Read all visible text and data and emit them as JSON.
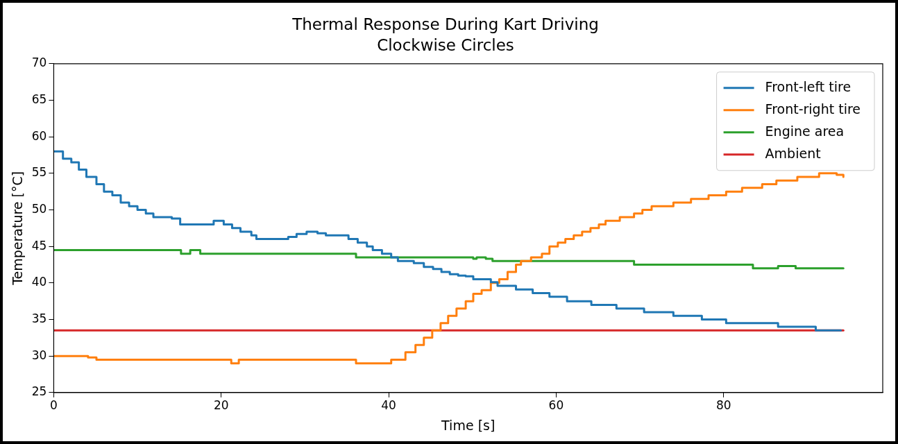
{
  "chart_data": {
    "type": "step",
    "title": "Thermal Response During Kart Driving",
    "subtitle": "Clockwise Circles",
    "xlabel": "Time [s]",
    "ylabel": "Temperature [°C]",
    "xlim": [
      0,
      99
    ],
    "xticks": [
      0,
      20,
      40,
      60,
      80
    ],
    "ylim": [
      25,
      70
    ],
    "yticks": [
      25,
      30,
      35,
      40,
      45,
      50,
      55,
      60,
      65,
      70
    ],
    "grid": false,
    "legend": "top right",
    "series": [
      {
        "name": "Front-left tire",
        "color": "#1f77b4",
        "x": [
          0,
          1.1,
          2.1,
          3.0,
          3.9,
          5.1,
          6.0,
          7.0,
          8.0,
          9.0,
          10.0,
          11.0,
          11.9,
          14.1,
          15.1,
          19.1,
          20.3,
          21.3,
          22.3,
          23.6,
          24.2,
          28.0,
          29.0,
          30.2,
          31.5,
          32.5,
          35.2,
          36.3,
          37.4,
          38.1,
          39.2,
          40.3,
          41.1,
          43.0,
          44.2,
          45.3,
          46.3,
          47.3,
          48.3,
          49.2,
          50.1,
          52.2,
          53.0,
          55.2,
          57.2,
          59.2,
          61.3,
          64.2,
          67.2,
          70.5,
          74.0,
          77.4,
          80.3,
          86.5,
          91.0,
          94.0
        ],
        "values": [
          58,
          57,
          56.5,
          55.5,
          54.5,
          53.5,
          52.5,
          52,
          51,
          50.5,
          50,
          49.5,
          49,
          48.8,
          48,
          48.5,
          48,
          47.5,
          47,
          46.5,
          46,
          46.3,
          46.7,
          47,
          46.8,
          46.5,
          46,
          45.5,
          45,
          44.5,
          44,
          43.5,
          43,
          42.7,
          42.2,
          41.9,
          41.5,
          41.2,
          41,
          40.9,
          40.5,
          40.1,
          39.6,
          39.1,
          38.6,
          38.1,
          37.5,
          37,
          36.5,
          36,
          35.5,
          35,
          34.5,
          34,
          33.5,
          33.5
        ]
      },
      {
        "name": "Front-right tire",
        "color": "#ff7f0e",
        "x": [
          0,
          4.1,
          5.1,
          21.2,
          22.1,
          36.1,
          40.3,
          42.0,
          43.2,
          44.2,
          45.2,
          46.2,
          47.1,
          48.1,
          49.2,
          50.1,
          51.1,
          52.2,
          53.2,
          54.2,
          55.2,
          55.8,
          57.0,
          58.3,
          59.2,
          60.2,
          61.1,
          62.1,
          63.1,
          64.1,
          65.1,
          65.9,
          67.6,
          69.3,
          70.3,
          71.4,
          74.0,
          76.1,
          78.2,
          80.3,
          82.2,
          84.6,
          86.3,
          88.8,
          91.4,
          93.5,
          94.3
        ],
        "values": [
          30,
          29.8,
          29.5,
          29,
          29.5,
          29,
          29.5,
          30.5,
          31.5,
          32.5,
          33.5,
          34.5,
          35.5,
          36.5,
          37.5,
          38.5,
          39,
          40,
          40.5,
          41.5,
          42.5,
          43,
          43.5,
          44,
          45,
          45.5,
          46,
          46.5,
          47,
          47.5,
          48,
          48.5,
          49,
          49.5,
          50,
          50.5,
          51,
          51.5,
          52,
          52.5,
          53,
          53.5,
          54,
          54.5,
          55,
          54.8,
          54.5
        ]
      },
      {
        "name": "Engine area",
        "color": "#2ca02c",
        "x": [
          0,
          15.2,
          16.3,
          17.5,
          36.1,
          50.1,
          50.5,
          51.6,
          52.4,
          69.3,
          83.5,
          86.5,
          88.6,
          94.3
        ],
        "values": [
          44.5,
          44,
          44.5,
          44,
          43.5,
          43.3,
          43.5,
          43.3,
          43,
          42.5,
          42,
          42.3,
          42,
          42
        ]
      },
      {
        "name": "Ambient",
        "color": "#d62728",
        "x": [
          0,
          94.3
        ],
        "values": [
          33.5,
          33.5
        ]
      }
    ]
  }
}
